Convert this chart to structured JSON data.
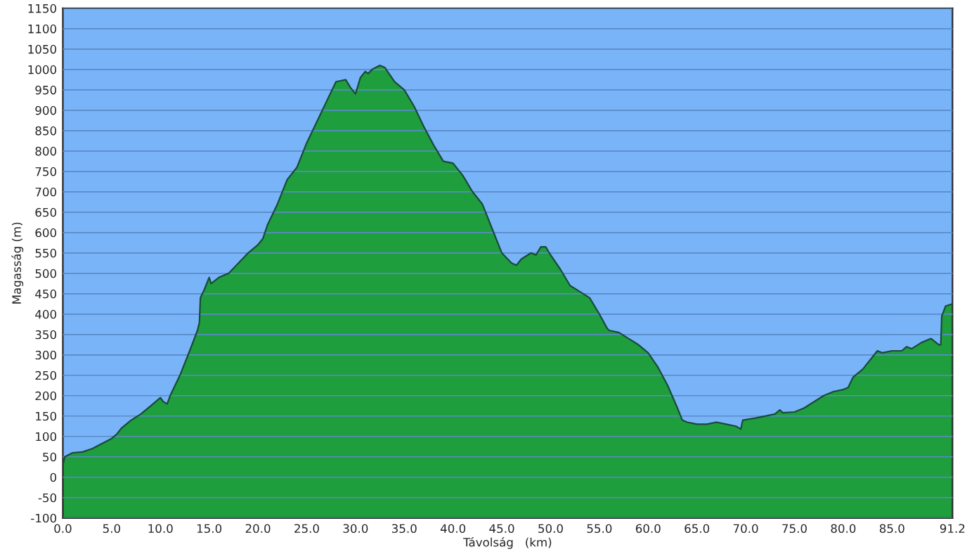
{
  "chart_data": {
    "type": "area",
    "xlabel": "Távolság   (km)",
    "ylabel": "Magasság (m)",
    "series": [
      {
        "color": "#1f9e3e",
        "x": [
          0,
          0.2,
          1,
          2,
          3,
          5,
          5.5,
          6,
          7,
          8,
          9,
          10,
          10.3,
          10.7,
          11,
          12,
          13,
          13.8,
          14,
          14.1,
          14.5,
          15,
          15.2,
          16,
          17,
          18,
          19,
          20,
          20.5,
          21,
          22,
          23,
          24,
          25,
          26,
          27,
          28,
          29,
          29.5,
          30,
          30.5,
          31,
          31.3,
          31.7,
          32.5,
          33,
          34,
          35,
          36,
          37,
          38,
          39,
          40,
          41,
          42,
          43,
          44,
          45,
          46,
          46.5,
          47,
          48,
          48.5,
          49,
          49.5,
          50,
          51,
          52,
          53,
          54,
          55,
          55.8,
          56,
          57,
          58,
          59,
          60,
          61,
          62,
          63,
          63.5,
          64,
          65,
          66,
          67,
          68,
          69,
          69.5,
          69.7,
          71,
          72,
          73,
          73.5,
          73.8,
          75,
          76,
          77,
          78,
          79,
          80,
          80.5,
          81,
          82,
          83,
          83.5,
          84,
          85,
          86,
          86.5,
          87,
          88,
          89,
          89.8,
          90,
          90.1,
          90.5,
          91.2
        ],
        "values": [
          30,
          50,
          60,
          62,
          70,
          95,
          105,
          120,
          140,
          155,
          175,
          195,
          185,
          180,
          200,
          250,
          310,
          360,
          380,
          440,
          460,
          490,
          475,
          490,
          500,
          525,
          550,
          570,
          585,
          620,
          670,
          730,
          760,
          820,
          870,
          920,
          970,
          975,
          955,
          940,
          980,
          995,
          990,
          1000,
          1010,
          1005,
          970,
          950,
          910,
          860,
          815,
          775,
          770,
          740,
          700,
          670,
          610,
          550,
          525,
          520,
          535,
          550,
          545,
          565,
          565,
          545,
          510,
          470,
          455,
          440,
          400,
          365,
          360,
          355,
          340,
          325,
          305,
          270,
          225,
          170,
          140,
          135,
          130,
          130,
          135,
          130,
          125,
          118,
          140,
          145,
          150,
          155,
          165,
          158,
          160,
          170,
          185,
          200,
          210,
          215,
          220,
          245,
          265,
          295,
          310,
          305,
          310,
          310,
          320,
          315,
          330,
          340,
          325,
          325,
          395,
          420,
          425
        ]
      }
    ],
    "xlim": [
      0,
      91.2
    ],
    "ylim": [
      -100,
      1150
    ],
    "xticks": [
      {
        "value": 0,
        "label": "0.0"
      },
      {
        "value": 5,
        "label": "5.0"
      },
      {
        "value": 10,
        "label": "10.0"
      },
      {
        "value": 15,
        "label": "15.0"
      },
      {
        "value": 20,
        "label": "20.0"
      },
      {
        "value": 25,
        "label": "25.0"
      },
      {
        "value": 30,
        "label": "30.0"
      },
      {
        "value": 35,
        "label": "35.0"
      },
      {
        "value": 40,
        "label": "40.0"
      },
      {
        "value": 45,
        "label": "45.0"
      },
      {
        "value": 50,
        "label": "50.0"
      },
      {
        "value": 55,
        "label": "55.0"
      },
      {
        "value": 60,
        "label": "60.0"
      },
      {
        "value": 65,
        "label": "65.0"
      },
      {
        "value": 70,
        "label": "70.0"
      },
      {
        "value": 75,
        "label": "75.0"
      },
      {
        "value": 80,
        "label": "80.0"
      },
      {
        "value": 85,
        "label": "85.0"
      },
      {
        "value": 91.2,
        "label": "91.2"
      }
    ],
    "yticks": [
      -100,
      -50,
      0,
      50,
      100,
      150,
      200,
      250,
      300,
      350,
      400,
      450,
      500,
      550,
      600,
      650,
      700,
      750,
      800,
      850,
      900,
      950,
      1000,
      1050,
      1100,
      1150
    ],
    "bands": [
      {
        "axis": "y",
        "from": -100,
        "to": 0,
        "color": "#1f9e3e"
      }
    ],
    "grid": "y"
  }
}
